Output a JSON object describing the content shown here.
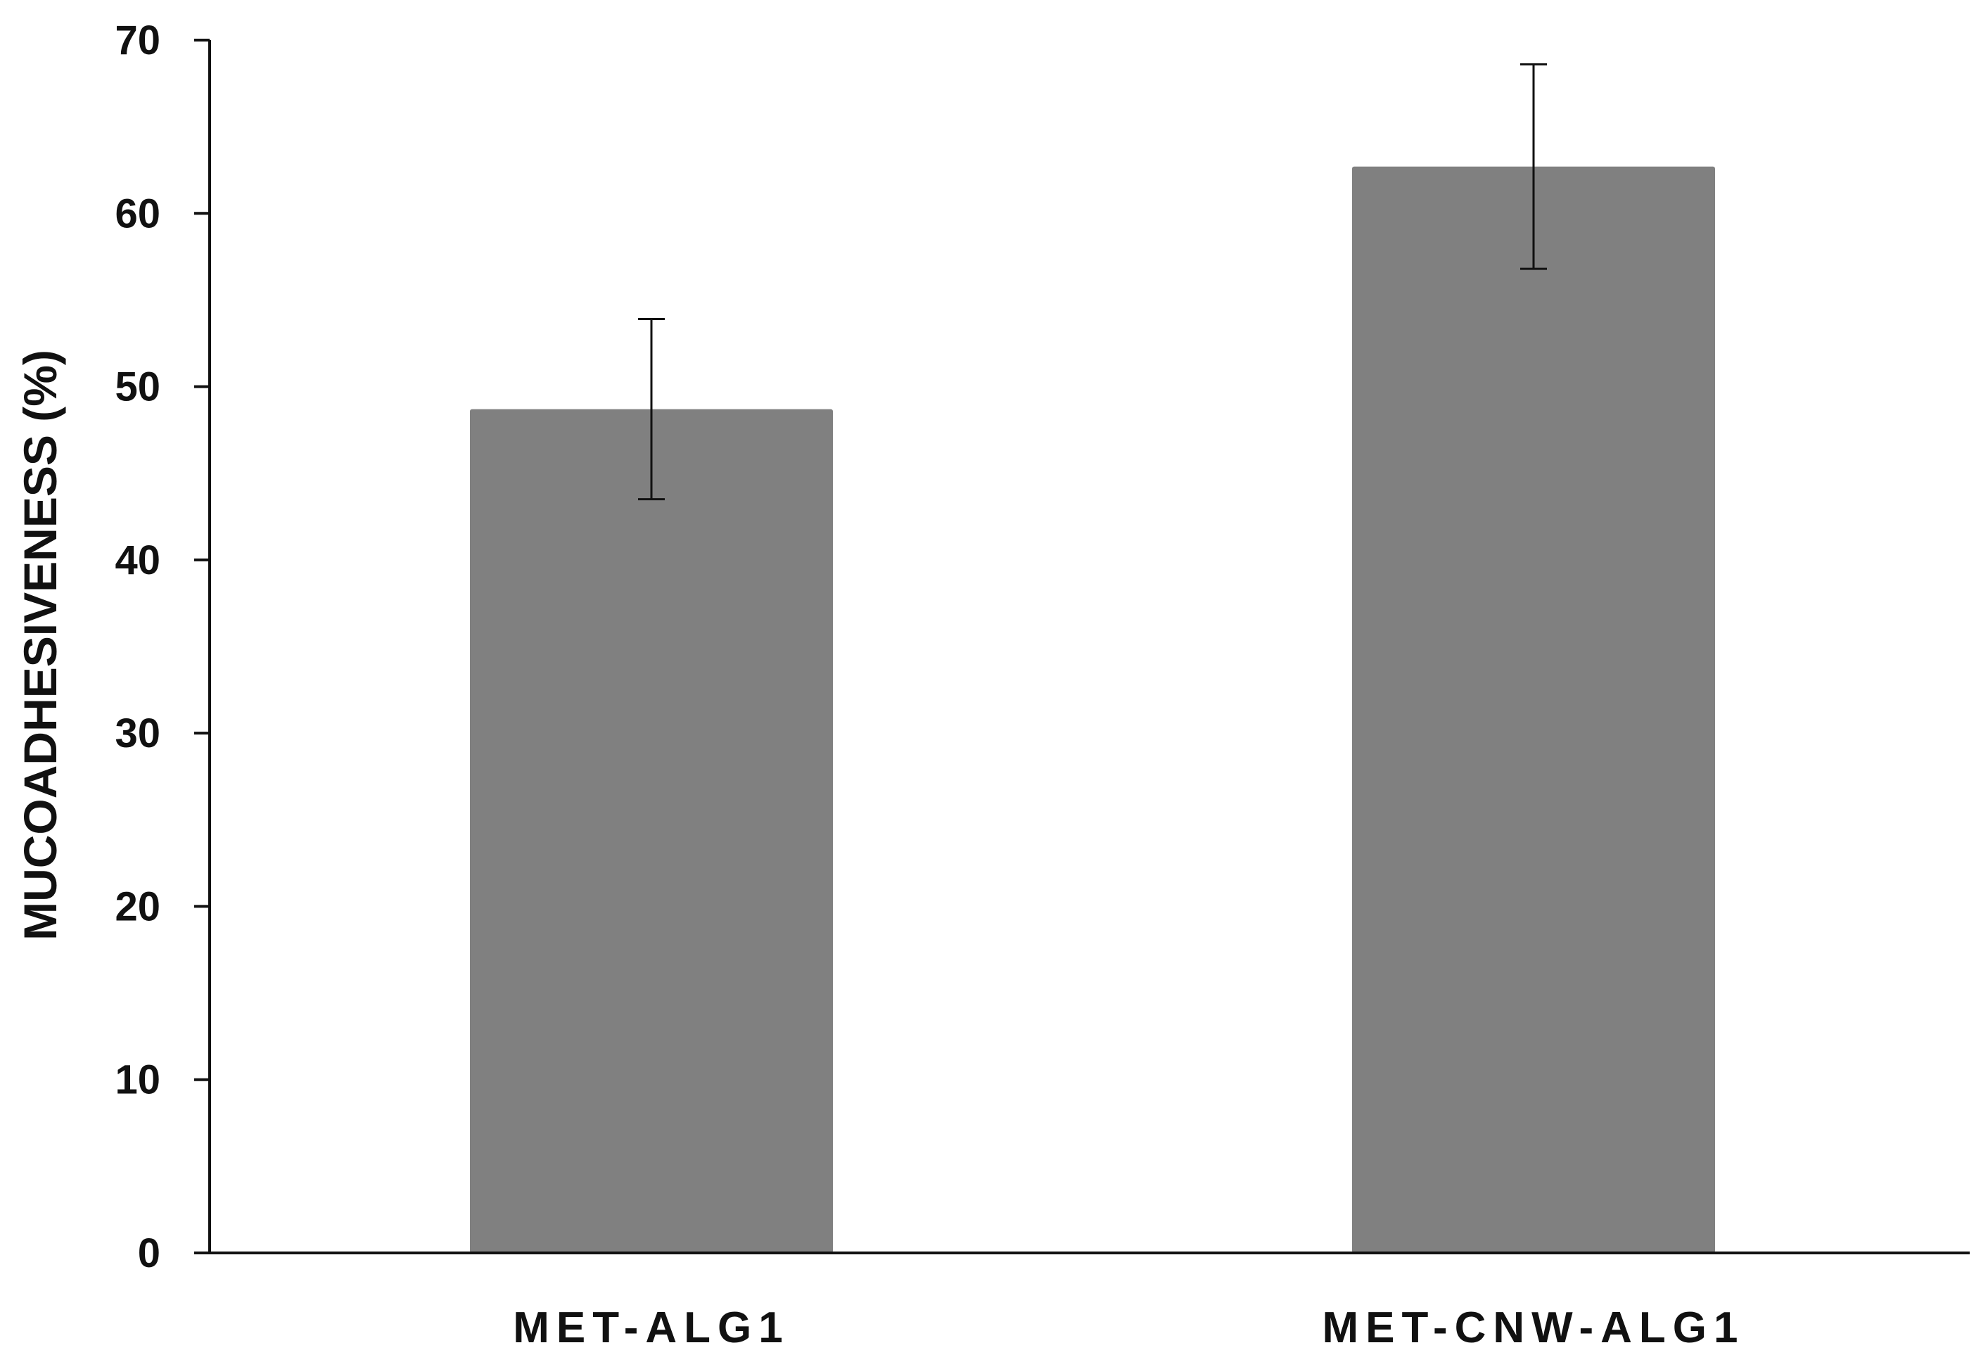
{
  "chart_data": {
    "type": "bar",
    "title": "",
    "xlabel": "",
    "ylabel": "MUCOADHESIVENESS (%)",
    "categories": [
      "MET-ALG1",
      "MET-CNW-ALG1"
    ],
    "values": [
      48.7,
      62.7
    ],
    "error": [
      5.2,
      5.9
    ],
    "ylim": [
      0,
      70
    ],
    "yticks": [
      "0",
      "10",
      "20",
      "30",
      "40",
      "50",
      "60",
      "70"
    ],
    "ytick_values": [
      0,
      10,
      20,
      30,
      40,
      50,
      60,
      70
    ],
    "grid": false,
    "legend": "none",
    "colors": {
      "bar": "#808080",
      "axis": "#111111",
      "error_bar": "#111111"
    }
  }
}
